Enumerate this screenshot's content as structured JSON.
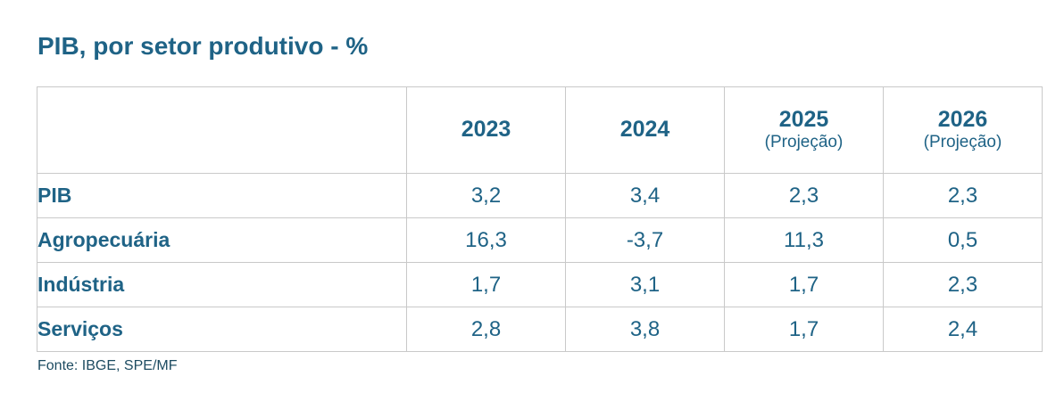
{
  "title": "PIB, por setor produtivo - %",
  "colors": {
    "accent_text": "#1F6386",
    "grid_border": "#C9C9C9",
    "source_text": "#1D4B61",
    "background": "#FFFFFF"
  },
  "table": {
    "header": {
      "label_column": "",
      "columns": [
        {
          "year": "2023",
          "note": ""
        },
        {
          "year": "2024",
          "note": ""
        },
        {
          "year": "2025",
          "note": "(Projeção)"
        },
        {
          "year": "2026",
          "note": "(Projeção)"
        }
      ]
    },
    "rows": [
      {
        "label": "PIB",
        "values": [
          "3,2",
          "3,4",
          "2,3",
          "2,3"
        ]
      },
      {
        "label": "Agropecuária",
        "values": [
          "16,3",
          "-3,7",
          "11,3",
          "0,5"
        ]
      },
      {
        "label": "Indústria",
        "values": [
          "1,7",
          "3,1",
          "1,7",
          "2,3"
        ]
      },
      {
        "label": "Serviços",
        "values": [
          "2,8",
          "3,8",
          "1,7",
          "2,4"
        ]
      }
    ]
  },
  "footer": {
    "source": "Fonte: IBGE, SPE/MF"
  },
  "chart_data": {
    "type": "table",
    "title": "PIB, por setor produtivo - %",
    "columns": [
      "2023",
      "2024",
      "2025 (Projeção)",
      "2026 (Projeção)"
    ],
    "rows": [
      {
        "label": "PIB",
        "values": [
          3.2,
          3.4,
          2.3,
          2.3
        ]
      },
      {
        "label": "Agropecuária",
        "values": [
          16.3,
          -3.7,
          11.3,
          0.5
        ]
      },
      {
        "label": "Indústria",
        "values": [
          1.7,
          3.1,
          1.7,
          2.3
        ]
      },
      {
        "label": "Serviços",
        "values": [
          2.8,
          3.8,
          1.7,
          2.4
        ]
      }
    ],
    "unit": "%",
    "decimal_separator": ",",
    "source": "Fonte: IBGE, SPE/MF"
  }
}
